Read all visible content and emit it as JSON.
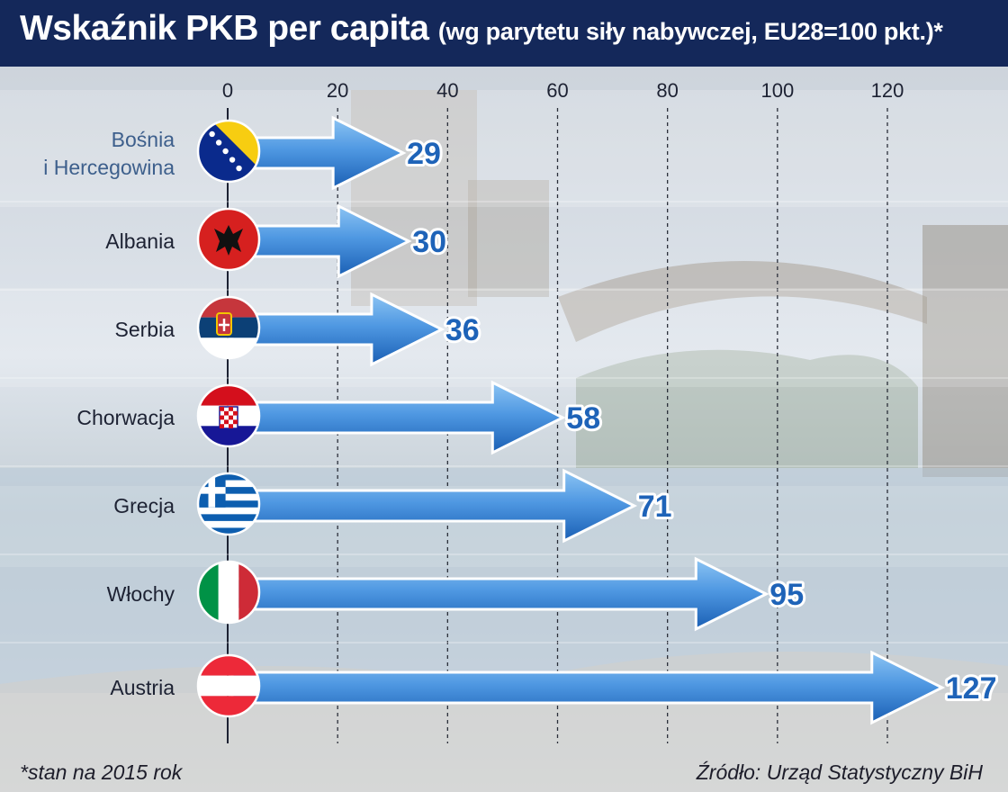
{
  "header": {
    "title_main": "Wskaźnik PKB per capita",
    "title_sub": "(wg parytetu siły nabywczej, EU28=100 pkt.)*"
  },
  "footer": {
    "footnote": "*stan na 2015 rok",
    "source": "Źródło: Urząd Statystyczny BiH"
  },
  "colors": {
    "title_bg": "#14285a",
    "arrow_light": "#6fb1ef",
    "arrow_dark": "#1a5fb4",
    "value_text": "#1e63b8",
    "first_label": "#3d5f8c"
  },
  "chart_data": {
    "type": "bar",
    "orientation": "horizontal",
    "title": "Wskaźnik PKB per capita",
    "subtitle": "(wg parytetu siły nabywczej, EU28=100 pkt.)*",
    "categories": [
      "Bośnia\ni Hercegowina",
      "Albania",
      "Serbia",
      "Chorwacja",
      "Grecja",
      "Włochy",
      "Austria"
    ],
    "values": [
      29,
      30,
      36,
      58,
      71,
      95,
      127
    ],
    "flag_icons": [
      "bosnia-flag-icon",
      "albania-flag-icon",
      "serbia-flag-icon",
      "croatia-flag-icon",
      "greece-flag-icon",
      "italy-flag-icon",
      "austria-flag-icon"
    ],
    "x_ticks": [
      0,
      20,
      40,
      60,
      80,
      100,
      120
    ],
    "xlim": [
      0,
      140
    ],
    "grid": true,
    "legend": "none"
  }
}
